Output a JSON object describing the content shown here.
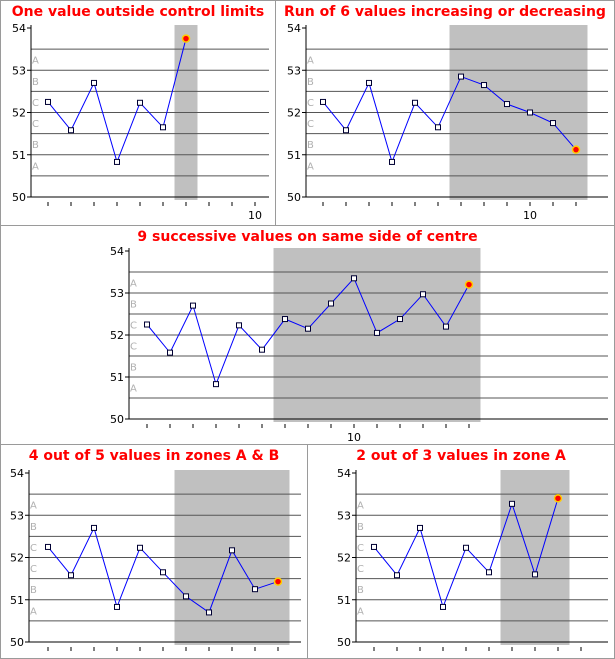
{
  "colors": {
    "shade": "#c0c0c0",
    "line": "#0000ff",
    "marker_edge": "#000033",
    "marker_fill": "#ffffff",
    "highlight_fill": "#ff0000",
    "highlight_edge": "#ffcc00",
    "title": "#ff0000",
    "zone_label": "#b0b0b0",
    "grid": "#555555"
  },
  "zone_labels": [
    "A",
    "B",
    "C",
    "C",
    "B",
    "A"
  ],
  "chart_data": [
    {
      "type": "line",
      "title": "One value outside control limits",
      "x": [
        1,
        2,
        3,
        4,
        5,
        6,
        7
      ],
      "values": [
        52.25,
        51.58,
        52.7,
        50.83,
        52.23,
        51.65,
        53.75
      ],
      "ylim": [
        50,
        54
      ],
      "yticks": [
        "50",
        "51",
        "52",
        "53",
        "54"
      ],
      "xtick_labels": [
        {
          "x": 10,
          "label": "10"
        }
      ],
      "control_lines": [
        50.5,
        51.0,
        51.5,
        52.0,
        52.5,
        53.0,
        53.5
      ],
      "highlight_range": [
        6.5,
        7.5
      ],
      "highlight_points": [
        7
      ]
    },
    {
      "type": "line",
      "title": "Run of 6 values increasing or decreasing",
      "x": [
        1,
        2,
        3,
        4,
        5,
        6,
        7,
        8,
        9,
        10,
        11,
        12
      ],
      "values": [
        52.25,
        51.58,
        52.7,
        50.83,
        52.23,
        51.65,
        52.85,
        52.65,
        52.2,
        52.0,
        51.75,
        51.12
      ],
      "ylim": [
        50,
        54
      ],
      "yticks": [
        "50",
        "51",
        "52",
        "53",
        "54"
      ],
      "xtick_labels": [
        {
          "x": 10,
          "label": "10"
        }
      ],
      "control_lines": [
        50.5,
        51.0,
        51.5,
        52.0,
        52.5,
        53.0,
        53.5
      ],
      "highlight_range": [
        6.5,
        12.5
      ],
      "highlight_points": [
        12
      ]
    },
    {
      "type": "line",
      "title": "9 successive values on same side of centre",
      "x": [
        1,
        2,
        3,
        4,
        5,
        6,
        7,
        8,
        9,
        10,
        11,
        12,
        13,
        14,
        15
      ],
      "values": [
        52.25,
        51.58,
        52.7,
        50.83,
        52.23,
        51.65,
        52.38,
        52.15,
        52.75,
        53.35,
        52.05,
        52.38,
        52.97,
        52.2,
        53.2
      ],
      "ylim": [
        50,
        54
      ],
      "yticks": [
        "50",
        "51",
        "52",
        "53",
        "54"
      ],
      "xtick_labels": [
        {
          "x": 10,
          "label": "10"
        }
      ],
      "control_lines": [
        50.5,
        51.0,
        51.5,
        52.0,
        52.5,
        53.0,
        53.5
      ],
      "highlight_range": [
        6.5,
        15.5
      ],
      "highlight_points": [
        15
      ]
    },
    {
      "type": "line",
      "title": "4 out of 5 values in zones A & B",
      "x": [
        1,
        2,
        3,
        4,
        5,
        6,
        7,
        8,
        9,
        10,
        11
      ],
      "values": [
        52.25,
        51.58,
        52.7,
        50.83,
        52.23,
        51.65,
        51.08,
        50.7,
        52.17,
        51.25,
        51.43
      ],
      "ylim": [
        50,
        54
      ],
      "yticks": [
        "50",
        "51",
        "52",
        "53",
        "54"
      ],
      "xtick_labels": [],
      "control_lines": [
        50.5,
        51.0,
        51.5,
        52.0,
        52.5,
        53.0,
        53.5
      ],
      "highlight_range": [
        6.5,
        11.5
      ],
      "highlight_points": [
        11
      ]
    },
    {
      "type": "line",
      "title": "2 out of 3 values in zone A",
      "x": [
        1,
        2,
        3,
        4,
        5,
        6,
        7,
        8,
        9
      ],
      "values": [
        52.25,
        51.58,
        52.7,
        50.83,
        52.23,
        51.65,
        53.27,
        51.6,
        53.4
      ],
      "ylim": [
        50,
        54
      ],
      "yticks": [
        "50",
        "51",
        "52",
        "53",
        "54"
      ],
      "xtick_labels": [],
      "control_lines": [
        50.5,
        51.0,
        51.5,
        52.0,
        52.5,
        53.0,
        53.5
      ],
      "highlight_range": [
        6.5,
        9.5
      ],
      "highlight_points": [
        9
      ]
    }
  ]
}
